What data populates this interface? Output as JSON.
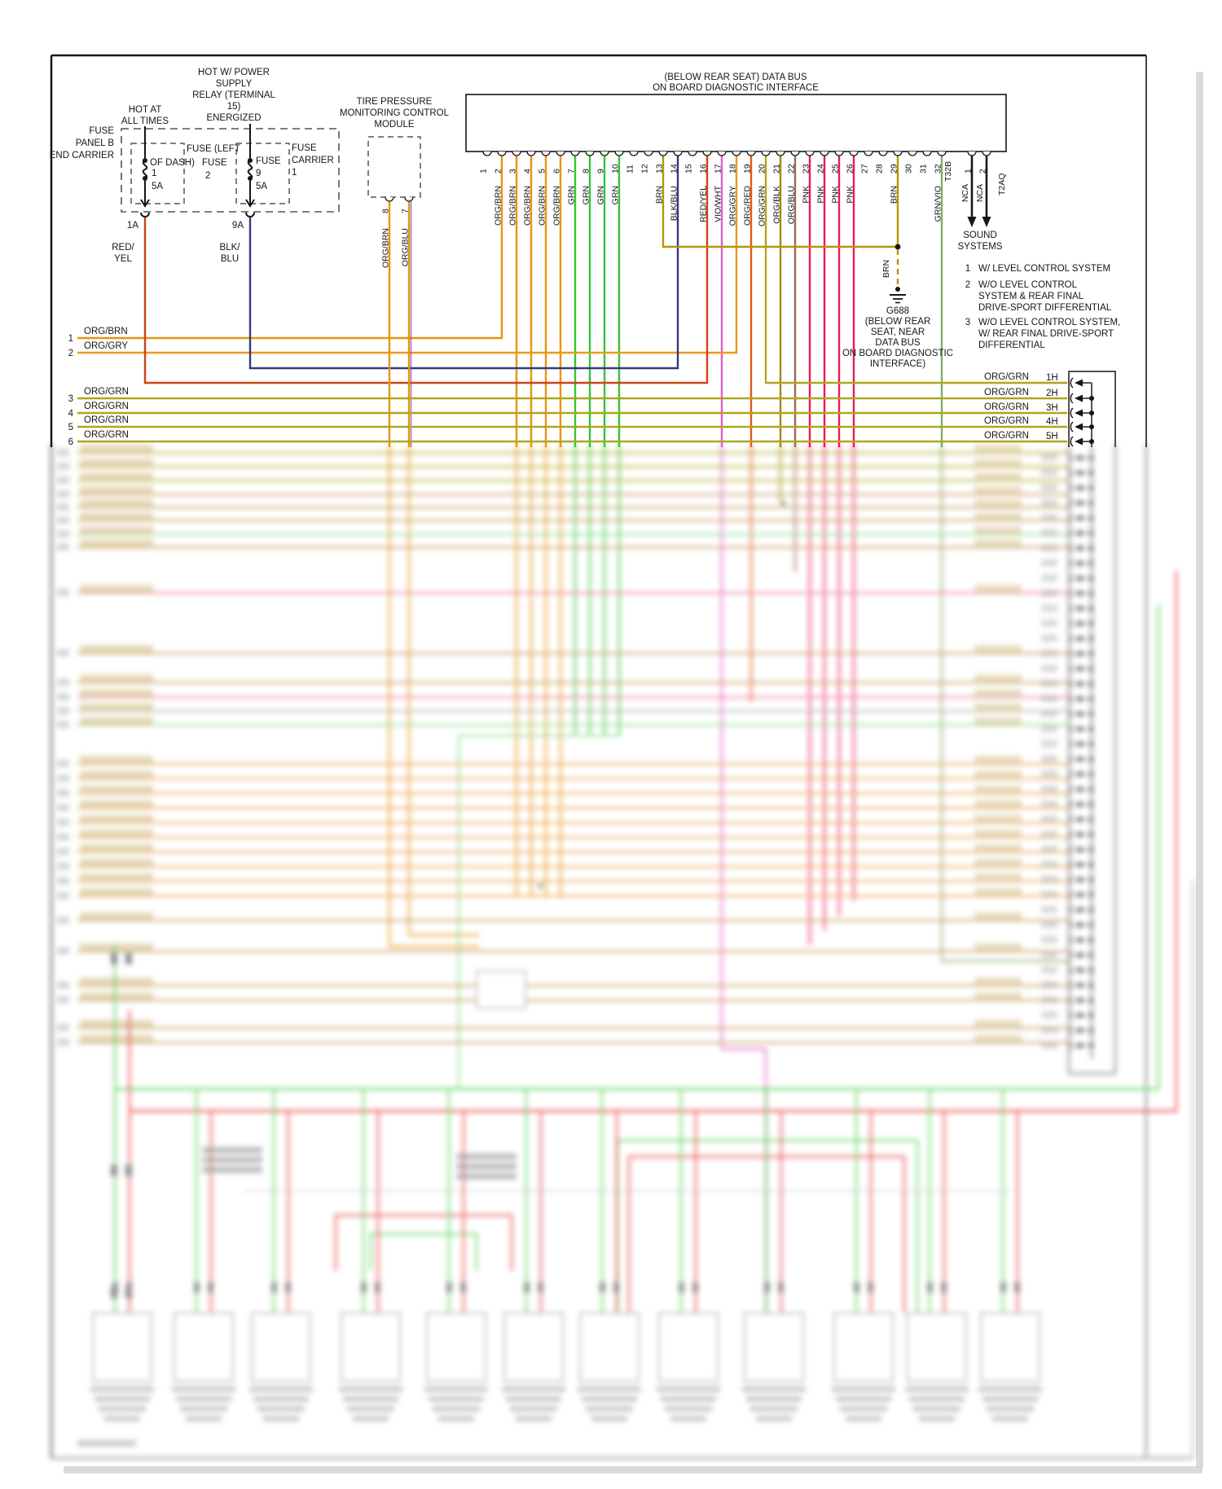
{
  "diagram": {
    "bus_title": [
      "(BELOW REAR SEAT) DATA BUS",
      "ON BOARD DIAGNOSTIC INTERFACE"
    ],
    "power": {
      "hot_at": [
        "HOT AT",
        "ALL TIMES"
      ],
      "relay": [
        "HOT W/ POWER",
        "SUPPLY",
        "RELAY (TERMINAL",
        "15)",
        "ENERGIZED"
      ],
      "panel": [
        "FUSE",
        "PANEL B",
        "END CARRIER"
      ],
      "fuse_left": [
        "FUSE (LEFT",
        "OF DASH)"
      ],
      "fuse2_tag": [
        "FUSE",
        "2"
      ],
      "fuse1": {
        "amp": "1",
        "rating": "5A"
      },
      "fuse9": {
        "title": "FUSE",
        "amp": "9",
        "rating": "5A"
      },
      "carrier": [
        "FUSE",
        "CARRIER",
        "1"
      ],
      "out": [
        "1A",
        "9A"
      ],
      "redyel": [
        "RED/",
        "YEL"
      ],
      "blkblu": [
        "BLK/",
        "BLU"
      ]
    },
    "tpms": {
      "title": [
        "TIRE PRESSURE",
        "MONITORING CONTROL",
        "MODULE"
      ],
      "pins": [
        "8",
        "7"
      ],
      "wires": [
        "ORG/BRN",
        "ORG/BLU"
      ]
    },
    "connector": {
      "label": "T32B",
      "aux_label": "T2AQ",
      "pins": [
        {
          "n": "1",
          "w": ""
        },
        {
          "n": "2",
          "w": "ORG/BRN"
        },
        {
          "n": "3",
          "w": "ORG/BRN"
        },
        {
          "n": "4",
          "w": "ORG/BRN"
        },
        {
          "n": "5",
          "w": "ORG/BRN"
        },
        {
          "n": "6",
          "w": "ORG/BRN"
        },
        {
          "n": "7",
          "w": "GRN"
        },
        {
          "n": "8",
          "w": "GRN"
        },
        {
          "n": "9",
          "w": "GRN"
        },
        {
          "n": "10",
          "w": "GRN"
        },
        {
          "n": "11",
          "w": ""
        },
        {
          "n": "12",
          "w": ""
        },
        {
          "n": "13",
          "w": "BRN"
        },
        {
          "n": "14",
          "w": "BLK/BLU"
        },
        {
          "n": "15",
          "w": ""
        },
        {
          "n": "16",
          "w": "RED/YEL"
        },
        {
          "n": "17",
          "w": "VIO/WHT"
        },
        {
          "n": "18",
          "w": "ORG/GRY"
        },
        {
          "n": "19",
          "w": "ORG/RED"
        },
        {
          "n": "20",
          "w": "ORG/GRN"
        },
        {
          "n": "21",
          "w": "ORG/BLK"
        },
        {
          "n": "22",
          "w": "ORG/BLU"
        },
        {
          "n": "23",
          "w": "PNK"
        },
        {
          "n": "24",
          "w": "PNK"
        },
        {
          "n": "25",
          "w": "PNK"
        },
        {
          "n": "26",
          "w": "PNK"
        },
        {
          "n": "27",
          "w": ""
        },
        {
          "n": "28",
          "w": ""
        },
        {
          "n": "29",
          "w": "BRN"
        },
        {
          "n": "30",
          "w": ""
        },
        {
          "n": "31",
          "w": ""
        },
        {
          "n": "32",
          "w": "GRN/VIO"
        }
      ],
      "aux_pins": [
        {
          "n": "1",
          "w": "NCA"
        },
        {
          "n": "2",
          "w": "NCA"
        }
      ]
    },
    "sound": [
      "SOUND",
      "SYSTEMS"
    ],
    "notes": [
      {
        "n": "1",
        "lines": [
          "W/ LEVEL CONTROL SYSTEM"
        ]
      },
      {
        "n": "2",
        "lines": [
          "W/O LEVEL CONTROL",
          "SYSTEM & REAR FINAL",
          "DRIVE-SPORT DIFFERENTIAL"
        ]
      },
      {
        "n": "3",
        "lines": [
          "W/O LEVEL CONTROL SYSTEM,",
          "W/ REAR FINAL DRIVE-SPORT",
          "DIFFERENTIAL"
        ]
      }
    ],
    "ground": {
      "wire": "BRN",
      "name": "G688",
      "loc": [
        "(BELOW REAR",
        "SEAT, NEAR",
        "DATA BUS",
        "ON BOARD DIAGNOSTIC",
        "INTERFACE)"
      ]
    },
    "left_rows": [
      {
        "n": "1",
        "label": "ORG/BRN"
      },
      {
        "n": "2",
        "label": "ORG/GRY"
      },
      {
        "n": "3",
        "label": "ORG/GRN"
      },
      {
        "n": "4",
        "label": "ORG/GRN"
      },
      {
        "n": "5",
        "label": "ORG/GRN"
      },
      {
        "n": "6",
        "label": "ORG/GRN"
      }
    ],
    "right_rows": [
      {
        "label": "ORG/GRN",
        "tag": "1H"
      },
      {
        "label": "ORG/GRN",
        "tag": "2H"
      },
      {
        "label": "ORG/GRN",
        "tag": "3H"
      },
      {
        "label": "ORG/GRN",
        "tag": "4H"
      },
      {
        "label": "ORG/GRN",
        "tag": "5H"
      }
    ],
    "wire_colors": {
      "ORG/BRN": "#e8940e",
      "GRN": "#38c438",
      "BRN": "#b8930f",
      "BLK/BLU": "#333a7d",
      "RED/YEL": "#cd4414",
      "VIO/WHT": "#e05ed4",
      "ORG/GRY": "#eb9a1c",
      "ORG/RED": "#e25917",
      "ORG/GRN": "#b2a51d",
      "ORG/BLK": "#9c8c1a",
      "ORG/BLU": "#a06a54",
      "PNK": "#e91a52",
      "GRN/VIO": "#86aa68",
      "NCA": "#1a1a1a"
    },
    "blur_palette": {
      "olive": "#b7ad2f",
      "tan": "#c79a5d",
      "green": "#8ede8e",
      "pink": "#ef7f9e",
      "gray": "#b5b5b5",
      "orange": "#eea251",
      "red": "#ea4343",
      "busgreen": "#5cd45c",
      "magenta": "#d974df",
      "chip": "#c3a35a",
      "chipgray": "#9a9a9a"
    }
  }
}
